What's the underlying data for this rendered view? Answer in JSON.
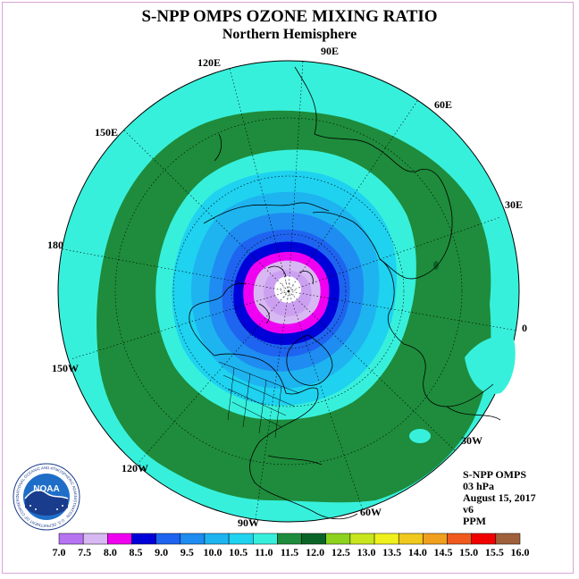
{
  "title": "S-NPP OMPS OZONE MIXING RATIO",
  "subtitle": "Northern Hemisphere",
  "longitude_labels": [
    {
      "text": "90E",
      "lon": 90
    },
    {
      "text": "120E",
      "lon": 120
    },
    {
      "text": "60E",
      "lon": 60
    },
    {
      "text": "150E",
      "lon": 150
    },
    {
      "text": "30E",
      "lon": 30
    },
    {
      "text": "180",
      "lon": 180
    },
    {
      "text": "0",
      "lon": 0
    },
    {
      "text": "150W",
      "lon": -150
    },
    {
      "text": "30W",
      "lon": -30
    },
    {
      "text": "120W",
      "lon": -120
    },
    {
      "text": "60W",
      "lon": -60
    },
    {
      "text": "90W",
      "lon": -90
    }
  ],
  "info": {
    "instrument": "S-NPP OMPS",
    "level": "03 hPa",
    "date": "August 15, 2017",
    "version": "v6",
    "units": "PPM"
  },
  "logo": {
    "text": "NOAA",
    "ring_text": "NATIONAL OCEANIC AND ATMOSPHERIC ADMINISTRATION · U.S. DEPARTMENT OF COMMERCE"
  },
  "colorbar": {
    "ticks": [
      "7.0",
      "7.5",
      "8.0",
      "8.5",
      "9.0",
      "9.5",
      "10.0",
      "10.5",
      "11.0",
      "11.5",
      "12.0",
      "12.5",
      "13.0",
      "13.5",
      "14.0",
      "14.5",
      "15.0",
      "15.5",
      "16.0"
    ],
    "colors": [
      "#b673f2",
      "#d8b8f2",
      "#f000f0",
      "#0000d8",
      "#1e64f0",
      "#1e8cf0",
      "#1eb4f0",
      "#1ed2f0",
      "#37f0dc",
      "#1e8c3c",
      "#0a6428",
      "#8cd21e",
      "#c8e61e",
      "#f0f01e",
      "#f0c81e",
      "#f0a01e",
      "#f05a1e",
      "#f00000",
      "#a0603c"
    ]
  },
  "map": {
    "projection": "north polar stereographic",
    "ozone_bands_ppm": [
      "7.0-7.5",
      "7.5-8.0",
      "8.0-8.5",
      "8.5-9.0",
      "9.0-9.5",
      "9.5-10.0",
      "10.0-10.5",
      "10.5-11.0",
      "11.0-11.5",
      "11.5-12.0"
    ]
  }
}
